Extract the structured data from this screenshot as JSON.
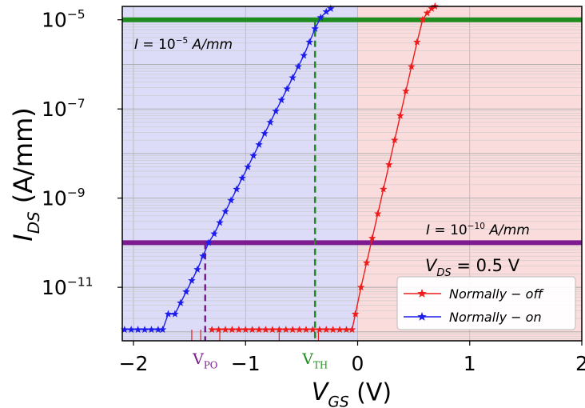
{
  "chart_data": {
    "type": "line",
    "xlabel": {
      "main": "V",
      "sub": "GS",
      "unit": " (V)"
    },
    "ylabel": {
      "main": "I",
      "sub": "DS",
      "unit": " (A/mm)"
    },
    "xlim": [
      -2.1,
      2.0
    ],
    "ylim_log10": [
      -12.2,
      -4.7
    ],
    "y_scale": "log",
    "grid": true,
    "x_ticks": [
      {
        "value": -2,
        "label": "−2"
      },
      {
        "value": -1,
        "label": "−1"
      },
      {
        "value": 0,
        "label": "0"
      },
      {
        "value": 1,
        "label": "1"
      },
      {
        "value": 2,
        "label": "2"
      }
    ],
    "y_ticks": [
      {
        "exp": -5,
        "base": "10",
        "sup": "−5"
      },
      {
        "exp": -7,
        "base": "10",
        "sup": "−7"
      },
      {
        "exp": -9,
        "base": "10",
        "sup": "−9"
      },
      {
        "exp": -11,
        "base": "10",
        "sup": "−11"
      }
    ],
    "regions": [
      {
        "name": "normally-on-region",
        "x0": -2.1,
        "x1": 0,
        "color": "#dcdcf8"
      },
      {
        "name": "normally-off-region",
        "x0": 0,
        "x1": 2.0,
        "color": "#fbdcdc"
      }
    ],
    "hlines": [
      {
        "name": "i-high-line",
        "log10": -5,
        "color": "#1e8c1e",
        "label": {
          "pre": "I = 10",
          "sup": "−5",
          "post": " A/mm"
        }
      },
      {
        "name": "i-low-line",
        "log10": -10,
        "color": "#7d1a8f",
        "label": {
          "pre": "I = 10",
          "sup": "−10",
          "post": " A/mm"
        }
      }
    ],
    "vlines": [
      {
        "name": "vth-line",
        "x": -0.38,
        "log10_top": -5,
        "color": "#1e8c1e",
        "label": {
          "main": "V",
          "sub": "TH"
        }
      },
      {
        "name": "vpo-line",
        "x": -1.36,
        "log10_top": -10,
        "color": "#7d1a8f",
        "label": {
          "main": "V",
          "sub": "PO"
        }
      }
    ],
    "annotation": {
      "main": "V",
      "sub": "DS",
      "post": " = 0.5 V"
    },
    "legend_position": "lower-right",
    "series": [
      {
        "name": "Normally − off",
        "color": "#ee1c1c",
        "points": [
          [
            -1.3,
            -11.95
          ],
          [
            -1.24,
            -11.95
          ],
          [
            -1.18,
            -11.95
          ],
          [
            -1.12,
            -11.95
          ],
          [
            -1.06,
            -11.95
          ],
          [
            -1.0,
            -11.95
          ],
          [
            -0.94,
            -11.95
          ],
          [
            -0.88,
            -11.95
          ],
          [
            -0.82,
            -11.95
          ],
          [
            -0.76,
            -11.95
          ],
          [
            -0.7,
            -11.95
          ],
          [
            -0.64,
            -11.95
          ],
          [
            -0.58,
            -11.95
          ],
          [
            -0.52,
            -11.95
          ],
          [
            -0.46,
            -11.95
          ],
          [
            -0.4,
            -11.95
          ],
          [
            -0.34,
            -11.95
          ],
          [
            -0.28,
            -11.95
          ],
          [
            -0.22,
            -11.95
          ],
          [
            -0.16,
            -11.95
          ],
          [
            -0.1,
            -11.95
          ],
          [
            -0.05,
            -11.95
          ],
          [
            -0.02,
            -11.6
          ],
          [
            0.03,
            -11.0
          ],
          [
            0.08,
            -10.45
          ],
          [
            0.13,
            -9.9
          ],
          [
            0.18,
            -9.35
          ],
          [
            0.23,
            -8.8
          ],
          [
            0.28,
            -8.25
          ],
          [
            0.33,
            -7.7
          ],
          [
            0.38,
            -7.15
          ],
          [
            0.43,
            -6.6
          ],
          [
            0.48,
            -6.05
          ],
          [
            0.53,
            -5.5
          ],
          [
            0.58,
            -5.0
          ],
          [
            0.62,
            -4.85
          ],
          [
            0.66,
            -4.75
          ],
          [
            0.69,
            -4.7
          ]
        ],
        "baseline_ticks_x": [
          -1.48,
          -1.4,
          -1.23,
          -0.7,
          -0.35
        ]
      },
      {
        "name": "Normally − on",
        "color": "#1c1cee",
        "points": [
          [
            -2.08,
            -11.95
          ],
          [
            -2.02,
            -11.95
          ],
          [
            -1.96,
            -11.95
          ],
          [
            -1.9,
            -11.95
          ],
          [
            -1.84,
            -11.95
          ],
          [
            -1.78,
            -11.95
          ],
          [
            -1.74,
            -11.95
          ],
          [
            -1.69,
            -11.6
          ],
          [
            -1.63,
            -11.6
          ],
          [
            -1.58,
            -11.35
          ],
          [
            -1.53,
            -11.1
          ],
          [
            -1.48,
            -10.85
          ],
          [
            -1.43,
            -10.6
          ],
          [
            -1.38,
            -10.3
          ],
          [
            -1.33,
            -10.0
          ],
          [
            -1.28,
            -9.8
          ],
          [
            -1.23,
            -9.55
          ],
          [
            -1.18,
            -9.3
          ],
          [
            -1.13,
            -9.05
          ],
          [
            -1.08,
            -8.8
          ],
          [
            -1.03,
            -8.55
          ],
          [
            -0.98,
            -8.3
          ],
          [
            -0.93,
            -8.05
          ],
          [
            -0.88,
            -7.8
          ],
          [
            -0.83,
            -7.55
          ],
          [
            -0.78,
            -7.3
          ],
          [
            -0.73,
            -7.05
          ],
          [
            -0.68,
            -6.8
          ],
          [
            -0.63,
            -6.55
          ],
          [
            -0.58,
            -6.3
          ],
          [
            -0.53,
            -6.05
          ],
          [
            -0.48,
            -5.8
          ],
          [
            -0.43,
            -5.5
          ],
          [
            -0.38,
            -5.2
          ],
          [
            -0.33,
            -4.95
          ],
          [
            -0.28,
            -4.82
          ],
          [
            -0.24,
            -4.75
          ]
        ]
      }
    ]
  }
}
